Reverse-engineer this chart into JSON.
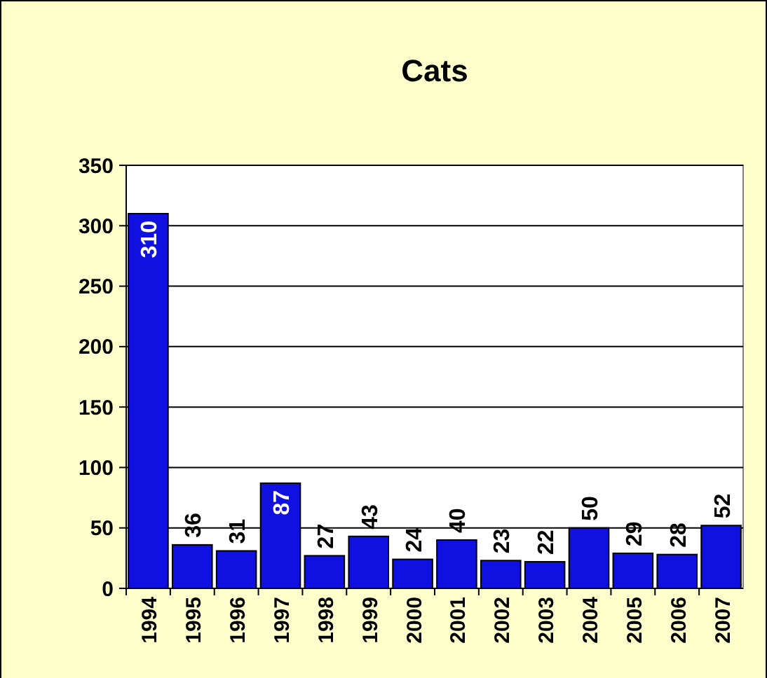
{
  "chart_data": {
    "type": "bar",
    "title": "Cats",
    "categories": [
      "1994",
      "1995",
      "1996",
      "1997",
      "1998",
      "1999",
      "2000",
      "2001",
      "2002",
      "2003",
      "2004",
      "2005",
      "2006",
      "2007"
    ],
    "values": [
      310,
      36,
      31,
      87,
      27,
      43,
      24,
      40,
      23,
      22,
      50,
      29,
      28,
      52
    ],
    "color": "#1010e0",
    "ylim": [
      0,
      350
    ],
    "yticks": [
      0,
      50,
      100,
      150,
      200,
      250,
      300,
      350
    ],
    "grid": "y",
    "data_labels": true
  }
}
